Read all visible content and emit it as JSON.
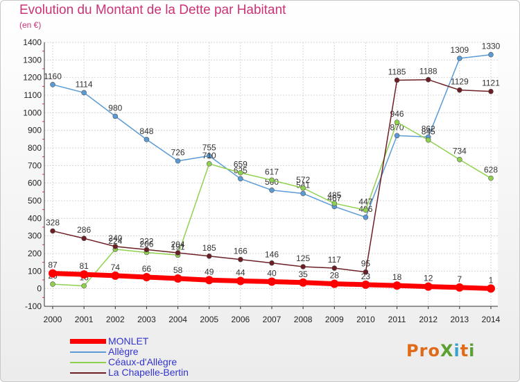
{
  "title": "Evolution du Montant de la Dette par Habitant",
  "subtitle": "(en €)",
  "logo": {
    "text": "ProXiti",
    "colors": [
      "#e06a17",
      "#e06a17",
      "#e06a17",
      "#5aa032",
      "#3aa0d0",
      "#e06a17",
      "#5aa032"
    ]
  },
  "chart_data": {
    "type": "line",
    "title": "Evolution du Montant de la Dette par Habitant",
    "ylabel": "(en €)",
    "xlabel": "",
    "x": [
      "2000",
      "2001",
      "2002",
      "2003",
      "2004",
      "2005",
      "2006",
      "2007",
      "2008",
      "2009",
      "2010",
      "2011",
      "2012",
      "2013",
      "2014"
    ],
    "ylim": [
      -100,
      1400
    ],
    "yticks": [
      -100,
      0,
      100,
      200,
      300,
      400,
      500,
      600,
      700,
      800,
      900,
      1000,
      1100,
      1200,
      1300,
      1400
    ],
    "grid": true,
    "legend": "bottom-left",
    "series": [
      {
        "name": "Allègre",
        "color": "#5b9bd5",
        "values": [
          1160,
          1114,
          980,
          848,
          726,
          755,
          625,
          560,
          541,
          467,
          406,
          870,
          862,
          1309,
          1330
        ]
      },
      {
        "name": "Céaux-d'Allègre",
        "color": "#8fd14f",
        "values": [
          26,
          16,
          224,
          206,
          191,
          710,
          659,
          617,
          572,
          485,
          447,
          946,
          845,
          734,
          628
        ]
      },
      {
        "name": "La Chapelle-Bertin",
        "color": "#6b1f24",
        "values": [
          328,
          286,
          240,
          222,
          204,
          185,
          166,
          146,
          125,
          117,
          95,
          1185,
          1188,
          1129,
          1121
        ]
      },
      {
        "name": "MONLET",
        "color": "#ff0000",
        "values": [
          87,
          81,
          74,
          66,
          58,
          49,
          44,
          40,
          35,
          28,
          23,
          18,
          12,
          7,
          1
        ]
      }
    ]
  }
}
